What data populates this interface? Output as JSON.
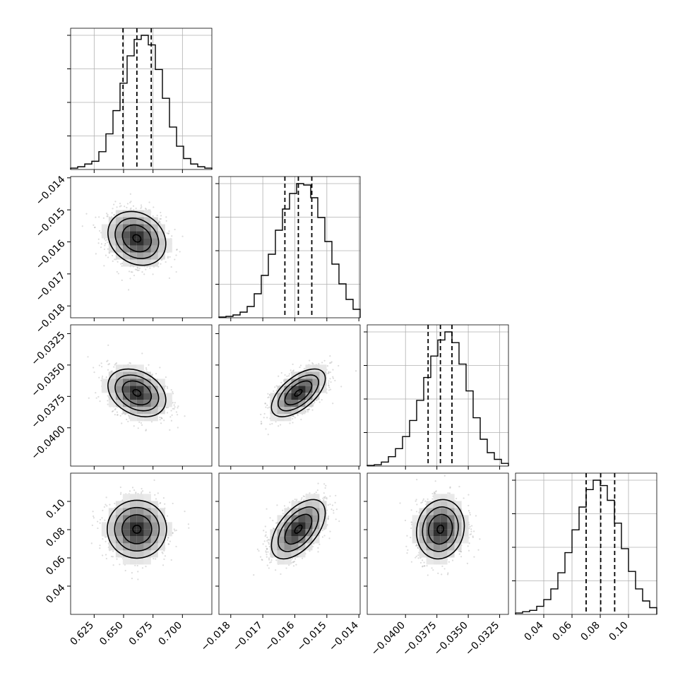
{
  "chart_data": {
    "type": "corner",
    "parameters": [
      {
        "range": [
          0.605,
          0.725
        ],
        "ticks": [
          0.625,
          0.65,
          0.675,
          0.7
        ],
        "tick_labels": [
          "0.625",
          "0.650",
          "0.675",
          "0.700"
        ],
        "quantiles": [
          0.6495,
          0.6613,
          0.6735
        ],
        "hist": [
          1,
          2,
          4,
          6,
          13,
          26,
          43,
          63,
          83,
          95,
          98,
          91,
          73,
          52,
          31,
          17,
          8,
          4,
          2,
          1
        ]
      },
      {
        "range": [
          -0.01837,
          -0.01396
        ],
        "ticks": [
          -0.018,
          -0.017,
          -0.016,
          -0.015,
          -0.014
        ],
        "tick_labels": [
          "−0.018",
          "−0.017",
          "−0.016",
          "−0.015",
          "−0.014"
        ],
        "quantiles": [
          -0.01631,
          -0.01589,
          -0.01547
        ],
        "hist": [
          0.5,
          1,
          2,
          4,
          8,
          17,
          30,
          45,
          62,
          77,
          88,
          95,
          94,
          85,
          71,
          54,
          38,
          24,
          13,
          6
        ]
      },
      {
        "range": [
          -0.04305,
          -0.0318
        ],
        "ticks": [
          -0.04,
          -0.0375,
          -0.035,
          -0.0325
        ],
        "tick_labels": [
          "−0.0400",
          "−0.0375",
          "−0.0350",
          "−0.0325"
        ],
        "quantiles": [
          -0.0382,
          -0.03722,
          -0.0363
        ],
        "hist": [
          0.5,
          1,
          3,
          7,
          13,
          22,
          34,
          49,
          66,
          82,
          94,
          100,
          92,
          76,
          56,
          36,
          20,
          10,
          5,
          2
        ]
      },
      {
        "range": [
          0.02,
          0.12
        ],
        "ticks": [
          0.04,
          0.06,
          0.08,
          0.1
        ],
        "tick_labels": [
          "0.04",
          "0.06",
          "0.08",
          "0.10"
        ],
        "quantiles": [
          0.07,
          0.0803,
          0.0902
        ],
        "hist": [
          1,
          2,
          3,
          6,
          11,
          19,
          31,
          46,
          63,
          80,
          93,
          100,
          96,
          85,
          68,
          49,
          32,
          19,
          10,
          5
        ]
      }
    ],
    "covariance_shape": {
      "stds": [
        0.0123,
        0.00042,
        0.00095,
        0.0105
      ],
      "correlations": [
        [
          1,
          -0.2,
          -0.3,
          0.0
        ],
        [
          -0.2,
          1,
          0.6,
          0.55
        ],
        [
          -0.3,
          0.6,
          1,
          0.1
        ],
        [
          0.0,
          0.55,
          0.1,
          1
        ]
      ]
    },
    "panel_order": "lower-triangular corner plot: diagonal = 1D histograms with dashed 16/50/84% quantile lines, off-diagonal = 2D densities with contours and scatter points"
  }
}
